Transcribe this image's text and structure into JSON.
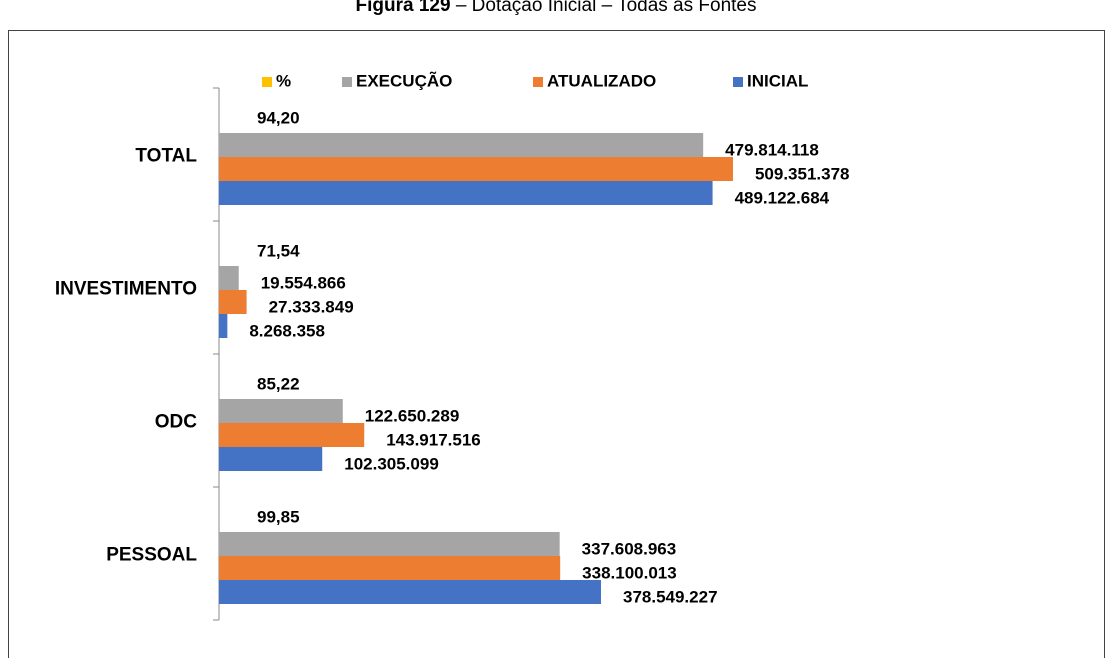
{
  "chart_data": {
    "type": "hbar",
    "figure": "Figura 129",
    "title": "– Dotação Inicial – Todas as Fontes",
    "categories": [
      "TOTAL",
      "INVESTIMENTO",
      "ODC",
      "PESSOAL"
    ],
    "series": [
      {
        "name": "%",
        "color": "#ffc000",
        "values": [
          94.2,
          71.54,
          85.22,
          99.85
        ],
        "value_labels": [
          "94,20",
          "71,54",
          "85,22",
          "99,85"
        ]
      },
      {
        "name": "EXECUÇÃO",
        "color": "#a5a5a5",
        "values": [
          479814118,
          19554866,
          122650289,
          337608963
        ],
        "value_labels": [
          "479.814.118",
          "19.554.866",
          "122.650.289",
          "337.608.963"
        ]
      },
      {
        "name": "ATUALIZADO",
        "color": "#ed7d31",
        "values": [
          509351378,
          27333849,
          143917516,
          338100013
        ],
        "value_labels": [
          "509.351.378",
          "27.333.849",
          "143.917.516",
          "338.100.013"
        ]
      },
      {
        "name": "INICIAL",
        "color": "#4472c4",
        "values": [
          489122684,
          8268358,
          102305099,
          378549227
        ],
        "value_labels": [
          "489.122.684",
          "8.268.358",
          "102.305.099",
          "378.549.227"
        ]
      }
    ],
    "xlim": [
      0,
      880000000
    ],
    "legend": "top"
  }
}
